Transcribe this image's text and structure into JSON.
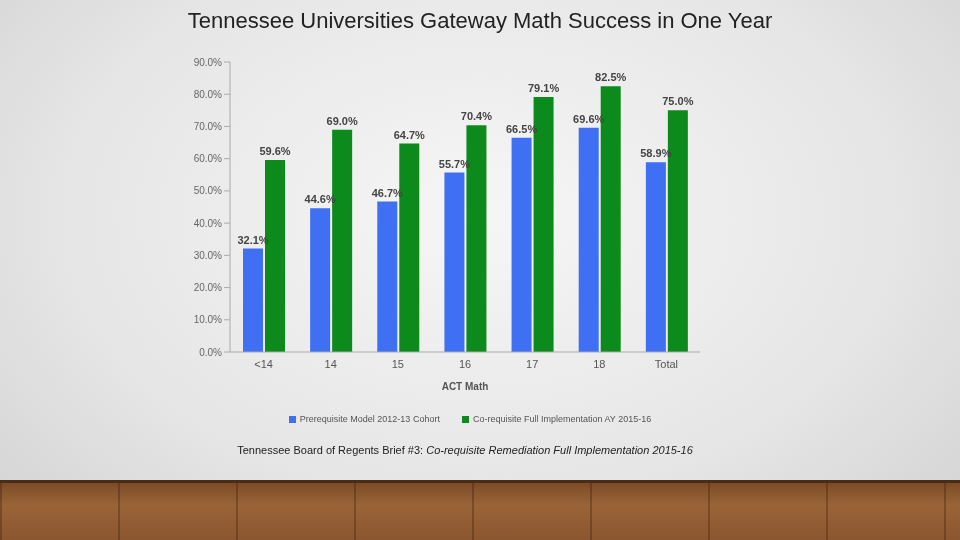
{
  "chart_data": {
    "type": "bar",
    "title": "Tennessee Universities Gateway Math Success in One Year",
    "x_label": "ACT Math",
    "source": "Tennessee Board of Regents Brief #3: Co-requisite Remediation Full Implementation 2015-16",
    "categories": [
      "<14",
      "14",
      "15",
      "16",
      "17",
      "18",
      "Total"
    ],
    "series": [
      {
        "name": "Prerequisite Model 2012-13 Cohort",
        "color": "#3f6ff2",
        "values": [
          32.1,
          44.6,
          46.7,
          55.7,
          66.5,
          69.6,
          58.9
        ],
        "value_labels": [
          "32.1%",
          "44.6%",
          "46.7%",
          "55.7%",
          "66.5%",
          "69.6%",
          "58.9%"
        ]
      },
      {
        "name": "Co-requisite Full Implementation AY 2015-16",
        "color": "#0c8a1c",
        "values": [
          59.6,
          69,
          64.7,
          70.4,
          79.1,
          82.5,
          75
        ],
        "value_labels": [
          "59.6%",
          "69.0%",
          "64.7%",
          "70.4%",
          "79.1%",
          "82.5%",
          "75.0%"
        ]
      }
    ],
    "ylim": [
      0,
      90
    ],
    "yticks": [
      {
        "value": 0,
        "label": "0.0%"
      },
      {
        "value": 10,
        "label": "10.0%"
      },
      {
        "value": 20,
        "label": "20.0%"
      },
      {
        "value": 30,
        "label": "30.0%"
      },
      {
        "value": 40,
        "label": "40.0%"
      },
      {
        "value": 50,
        "label": "50.0%"
      },
      {
        "value": 60,
        "label": "60.0%"
      },
      {
        "value": 70,
        "label": "70.0%"
      },
      {
        "value": 80,
        "label": "80.0%"
      },
      {
        "value": 90,
        "label": "90.0%"
      }
    ],
    "grid": false,
    "data_labels": true,
    "legend": "bottom"
  }
}
